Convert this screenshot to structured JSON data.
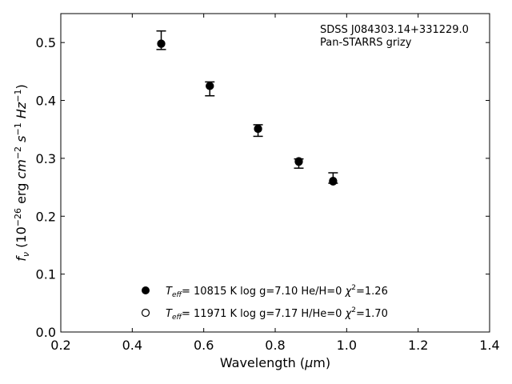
{
  "chart_data": {
    "type": "scatter",
    "xlabel": "Wavelength (μm)",
    "ylabel": "f_ν (10^-26 erg cm^-2 s^-1 Hz^-1)",
    "xlim": [
      0.2,
      1.4
    ],
    "ylim": [
      0.0,
      0.55
    ],
    "xticks": [
      "0.2",
      "0.4",
      "0.6",
      "0.8",
      "1.0",
      "1.2",
      "1.4"
    ],
    "yticks": [
      "0.0",
      "0.1",
      "0.2",
      "0.3",
      "0.4",
      "0.5"
    ],
    "grid": false,
    "annotation": [
      "SDSS J084303.14+331229.0",
      "Pan-STARRS grizy"
    ],
    "observed": {
      "x": [
        0.481,
        0.617,
        0.752,
        0.866,
        0.962
      ],
      "y": [
        0.504,
        0.42,
        0.348,
        0.291,
        0.266
      ],
      "err": [
        0.016,
        0.012,
        0.01,
        0.008,
        0.009
      ]
    },
    "series": [
      {
        "marker": "filled",
        "x": [
          0.481,
          0.617,
          0.752,
          0.866,
          0.962
        ],
        "y": [
          0.498,
          0.425,
          0.351,
          0.294,
          0.26
        ],
        "legend": {
          "teff": "T",
          "teff_sub": "eff",
          "text": "= 10815 K  log g=7.10  He/H=0  χ",
          "sup": "2",
          "tail": "=1.26"
        }
      },
      {
        "marker": "open",
        "x": [
          0.481,
          0.617,
          0.752,
          0.866,
          0.962
        ],
        "y": [
          0.498,
          0.425,
          0.351,
          0.295,
          0.261
        ],
        "legend": {
          "teff": "T",
          "teff_sub": "eff",
          "text": "= 11971 K  log g=7.17  H/He=0  χ",
          "sup": "2",
          "tail": "=1.70"
        }
      }
    ]
  }
}
